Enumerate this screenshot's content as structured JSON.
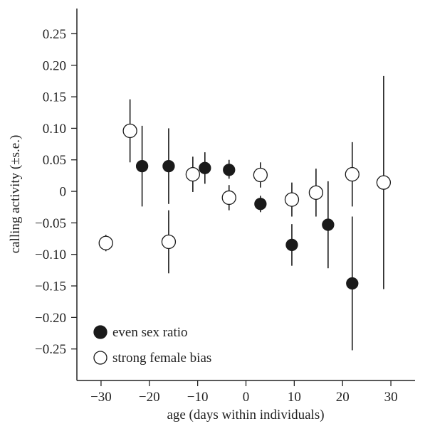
{
  "chart_data": {
    "type": "scatter",
    "title": "",
    "xlabel": "age (days within individuals)",
    "ylabel": "calling activity (±s.e.)",
    "xlim": [
      -35,
      35
    ],
    "ylim": [
      -0.3,
      0.29
    ],
    "xticks": [
      {
        "value": -30,
        "label": "−30"
      },
      {
        "value": -20,
        "label": "−20"
      },
      {
        "value": -10,
        "label": "−10"
      },
      {
        "value": 0,
        "label": "0"
      },
      {
        "value": 10,
        "label": "10"
      },
      {
        "value": 20,
        "label": "20"
      },
      {
        "value": 30,
        "label": "30"
      }
    ],
    "yticks": [
      {
        "value": 0.25,
        "label": "0.25"
      },
      {
        "value": 0.2,
        "label": "0.20"
      },
      {
        "value": 0.15,
        "label": "0.15"
      },
      {
        "value": 0.1,
        "label": "0.10"
      },
      {
        "value": 0.05,
        "label": "0.05"
      },
      {
        "value": 0,
        "label": "0"
      },
      {
        "value": -0.05,
        "label": "−0.05"
      },
      {
        "value": -0.1,
        "label": "−0.10"
      },
      {
        "value": -0.15,
        "label": "−0.15"
      },
      {
        "value": -0.2,
        "label": "−0.20"
      },
      {
        "value": -0.25,
        "label": "−0.25"
      }
    ],
    "grid": false,
    "legend_position": "bottom-left",
    "series": [
      {
        "name": "even sex ratio",
        "marker": "filled-circle",
        "color": "#1a1a1a",
        "points": [
          {
            "x": -21.5,
            "y": 0.04,
            "low": -0.024,
            "high": 0.104
          },
          {
            "x": -16.0,
            "y": 0.04,
            "low": -0.02,
            "high": 0.1
          },
          {
            "x": -8.5,
            "y": 0.037,
            "low": 0.012,
            "high": 0.062
          },
          {
            "x": -3.5,
            "y": 0.034,
            "low": 0.02,
            "high": 0.05
          },
          {
            "x": 3.0,
            "y": -0.02,
            "low": -0.033,
            "high": -0.007
          },
          {
            "x": 9.5,
            "y": -0.085,
            "low": -0.118,
            "high": -0.052
          },
          {
            "x": 17.0,
            "y": -0.053,
            "low": -0.122,
            "high": 0.016
          },
          {
            "x": 22.0,
            "y": -0.146,
            "low": -0.252,
            "high": -0.04
          }
        ]
      },
      {
        "name": "strong female bias",
        "marker": "open-circle",
        "color": "#1a1a1a",
        "points": [
          {
            "x": -29.0,
            "y": -0.082,
            "low": -0.095,
            "high": -0.069
          },
          {
            "x": -24.0,
            "y": 0.096,
            "low": 0.046,
            "high": 0.146
          },
          {
            "x": -16.0,
            "y": -0.08,
            "low": -0.13,
            "high": -0.03
          },
          {
            "x": -11.0,
            "y": 0.027,
            "low": -0.001,
            "high": 0.055
          },
          {
            "x": -3.5,
            "y": -0.01,
            "low": -0.03,
            "high": 0.01
          },
          {
            "x": 3.0,
            "y": 0.026,
            "low": 0.006,
            "high": 0.046
          },
          {
            "x": 9.5,
            "y": -0.013,
            "low": -0.04,
            "high": 0.014
          },
          {
            "x": 14.5,
            "y": -0.002,
            "low": -0.04,
            "high": 0.036
          },
          {
            "x": 22.0,
            "y": 0.027,
            "low": -0.024,
            "high": 0.078
          },
          {
            "x": 28.5,
            "y": 0.014,
            "low": -0.155,
            "high": 0.183
          }
        ]
      }
    ]
  }
}
